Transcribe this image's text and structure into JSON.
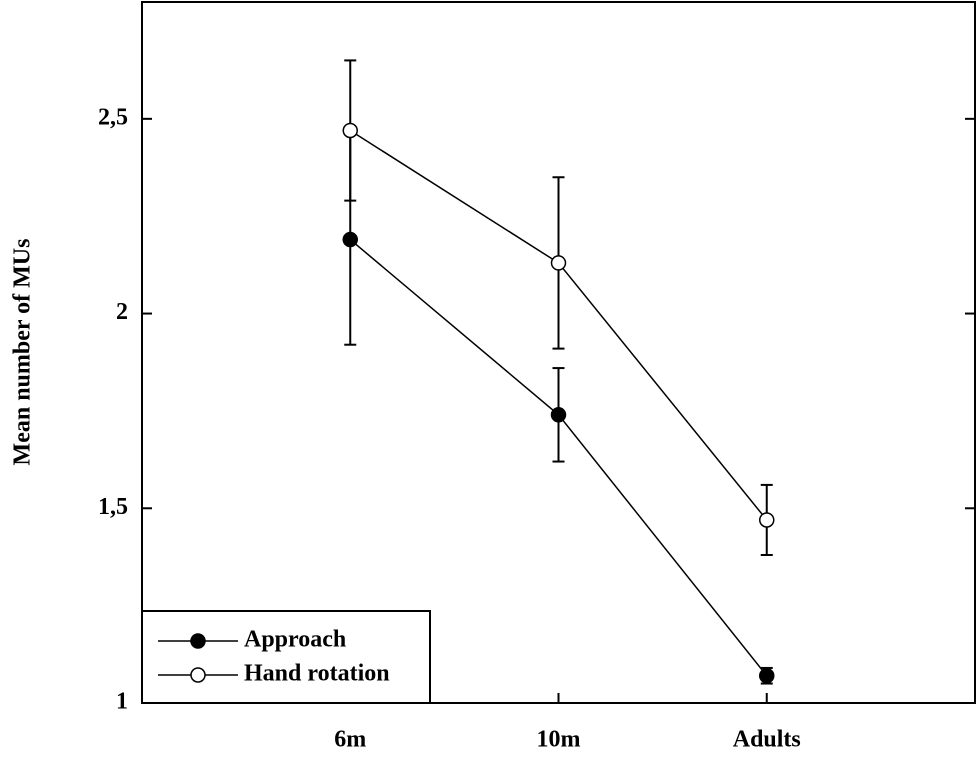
{
  "chart_data": {
    "type": "line",
    "y_label": "Mean number of MUs",
    "categories": [
      "6m",
      "10m",
      "Adults"
    ],
    "series": [
      {
        "name": "Approach",
        "color": "#000000",
        "marker": "filled",
        "values": [
          2.19,
          1.74,
          1.07
        ],
        "errors": [
          0.27,
          0.12,
          0.02
        ]
      },
      {
        "name": "Hand rotation",
        "color": "#000000",
        "marker": "open",
        "values": [
          2.47,
          2.13,
          1.47
        ],
        "errors": [
          0.18,
          0.22,
          0.09
        ]
      }
    ],
    "ylim": [
      1,
      2.8
    ],
    "yticks": [
      1,
      {
        "value": 1.5,
        "label": "1,5"
      },
      2,
      {
        "value": 2.5,
        "label": "2,5"
      }
    ],
    "legend": "lower left"
  }
}
